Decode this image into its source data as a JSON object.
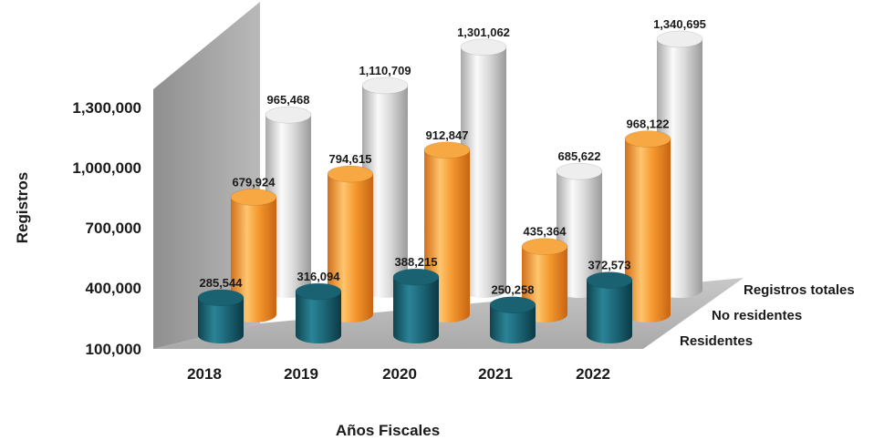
{
  "chart_data": {
    "type": "bar",
    "style": "3d-cylinder",
    "categories": [
      "2018",
      "2019",
      "2020",
      "2021",
      "2022"
    ],
    "xlabel": "Años Fiscales",
    "ylabel": "Registros",
    "yticks": [
      "100,000",
      "400,000",
      "700,000",
      "1,000,000",
      "1,300,000"
    ],
    "ytick_values": [
      100000,
      400000,
      700000,
      1000000,
      1300000
    ],
    "ylim": [
      100000,
      1350000
    ],
    "series": [
      {
        "name": "Residentes",
        "color": "#1f6f80",
        "values": [
          285544,
          316094,
          388215,
          250258,
          372573
        ],
        "labels": [
          "285,544",
          "316,094",
          "388,215",
          "250,258",
          "372,573"
        ]
      },
      {
        "name": "No residentes",
        "color": "#f39a2e",
        "values": [
          679924,
          794615,
          912847,
          435364,
          968122
        ],
        "labels": [
          "679,924",
          "794,615",
          "912,847",
          "435,364",
          "968,122"
        ]
      },
      {
        "name": "Registros totales",
        "color": "#d4d4d4",
        "values": [
          965468,
          1110709,
          1301062,
          685622,
          1340695
        ],
        "labels": [
          "965,468",
          "1,110,709",
          "1,301,062",
          "685,622",
          "1,340,695"
        ]
      }
    ]
  }
}
